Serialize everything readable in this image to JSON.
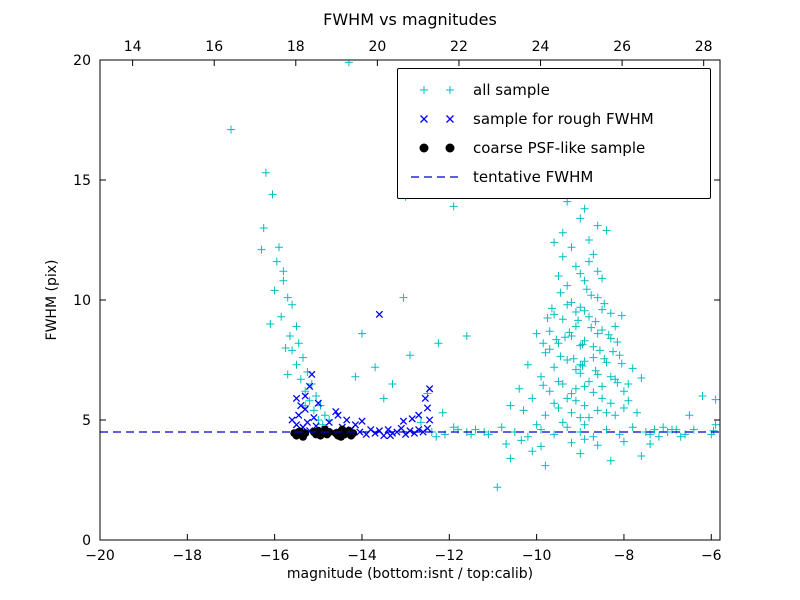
{
  "chart_data": {
    "type": "scatter",
    "title": "FWHM vs magnitudes",
    "xlabel": "magnitude (bottom:isnt / top:calib)",
    "ylabel": "FWHM (pix)",
    "xlim": [
      -20,
      -5.8
    ],
    "ylim": [
      0,
      20
    ],
    "top_xlim": [
      13.2,
      28.4
    ],
    "x_ticks": [
      -20,
      -18,
      -16,
      -14,
      -12,
      -10,
      -8,
      -6
    ],
    "x_tick_labels": [
      "−20",
      "−18",
      "−16",
      "−14",
      "−12",
      "−10",
      "−8",
      "−6"
    ],
    "y_ticks": [
      0,
      5,
      10,
      15,
      20
    ],
    "y_tick_labels": [
      "0",
      "5",
      "10",
      "15",
      "20"
    ],
    "top_ticks": [
      14,
      16,
      18,
      20,
      22,
      24,
      26,
      28
    ],
    "top_tick_labels": [
      "14",
      "16",
      "18",
      "20",
      "22",
      "24",
      "26",
      "28"
    ],
    "grid": false,
    "legend_position": "upper right",
    "tentative_fwhm_value": 4.5,
    "series": [
      {
        "name": "all sample",
        "marker": "plus",
        "color": "#00bfbf",
        "points": [
          [
            -17.0,
            17.1
          ],
          [
            -16.2,
            15.3
          ],
          [
            -16.05,
            14.4
          ],
          [
            -16.3,
            12.1
          ],
          [
            -15.95,
            11.6
          ],
          [
            -15.8,
            11.2
          ],
          [
            -16.0,
            10.4
          ],
          [
            -15.7,
            10.1
          ],
          [
            -15.6,
            9.8
          ],
          [
            -15.85,
            9.3
          ],
          [
            -15.5,
            8.9
          ],
          [
            -15.65,
            8.5
          ],
          [
            -15.45,
            8.2
          ],
          [
            -15.6,
            7.9
          ],
          [
            -15.35,
            7.6
          ],
          [
            -15.5,
            7.3
          ],
          [
            -15.25,
            7.0
          ],
          [
            -15.4,
            6.7
          ],
          [
            -15.15,
            6.5
          ],
          [
            -15.3,
            6.2
          ],
          [
            -15.05,
            6.0
          ],
          [
            -15.2,
            5.8
          ],
          [
            -14.95,
            5.6
          ],
          [
            -15.1,
            5.4
          ],
          [
            -14.85,
            5.2
          ],
          [
            -15.0,
            5.0
          ],
          [
            -15.7,
            6.9
          ],
          [
            -15.75,
            8.0
          ],
          [
            -16.1,
            9.0
          ],
          [
            -15.3,
            5.6
          ],
          [
            -14.9,
            4.8
          ],
          [
            -16.25,
            13.0
          ],
          [
            -15.9,
            12.2
          ],
          [
            -15.8,
            10.8
          ],
          [
            -14.75,
            5.0
          ],
          [
            -14.3,
            19.9
          ],
          [
            -14.0,
            8.6
          ],
          [
            -13.7,
            7.2
          ],
          [
            -13.3,
            6.5
          ],
          [
            -12.9,
            7.7
          ],
          [
            -12.5,
            6.1
          ],
          [
            -12.15,
            5.3
          ],
          [
            -13.5,
            5.9
          ],
          [
            -12.65,
            4.9
          ],
          [
            -14.15,
            6.8
          ],
          [
            -12.25,
            8.2
          ],
          [
            -13.0,
            14.3
          ],
          [
            -13.05,
            10.1
          ],
          [
            -11.9,
            13.9
          ],
          [
            -11.6,
            8.5
          ],
          [
            -11.4,
            4.6
          ],
          [
            -11.1,
            4.4
          ],
          [
            -10.8,
            4.7
          ],
          [
            -10.5,
            4.5
          ],
          [
            -10.2,
            4.3
          ],
          [
            -9.9,
            4.6
          ],
          [
            -9.6,
            4.4
          ],
          [
            -9.3,
            4.7
          ],
          [
            -9.0,
            4.5
          ],
          [
            -8.7,
            4.3
          ],
          [
            -8.4,
            4.6
          ],
          [
            -8.1,
            4.4
          ],
          [
            -7.8,
            4.7
          ],
          [
            -7.5,
            4.5
          ],
          [
            -7.2,
            4.3
          ],
          [
            -6.9,
            4.6
          ],
          [
            -6.6,
            4.4
          ],
          [
            -10.0,
            4.8
          ],
          [
            -9.4,
            4.9
          ],
          [
            -8.9,
            4.8
          ],
          [
            -9.8,
            5.2
          ],
          [
            -9.5,
            5.5
          ],
          [
            -9.2,
            5.3
          ],
          [
            -8.9,
            5.6
          ],
          [
            -8.6,
            5.4
          ],
          [
            -8.3,
            5.7
          ],
          [
            -8.0,
            5.5
          ],
          [
            -7.7,
            5.3
          ],
          [
            -9.1,
            5.8
          ],
          [
            -8.5,
            5.9
          ],
          [
            -10.3,
            5.4
          ],
          [
            -10.6,
            5.6
          ],
          [
            -9.0,
            5.1
          ],
          [
            -8.2,
            5.2
          ],
          [
            -7.9,
            5.8
          ],
          [
            -9.6,
            5.7
          ],
          [
            -9.3,
            5.9
          ],
          [
            -8.8,
            5.1
          ],
          [
            -8.4,
            5.3
          ],
          [
            -10.1,
            5.9
          ],
          [
            -9.7,
            6.2
          ],
          [
            -9.4,
            6.5
          ],
          [
            -9.1,
            6.3
          ],
          [
            -8.8,
            6.6
          ],
          [
            -8.5,
            6.4
          ],
          [
            -8.2,
            6.7
          ],
          [
            -7.9,
            6.5
          ],
          [
            -9.9,
            6.8
          ],
          [
            -9.2,
            6.1
          ],
          [
            -8.6,
            6.9
          ],
          [
            -10.4,
            6.3
          ],
          [
            -8.0,
            6.2
          ],
          [
            -8.3,
            6.8
          ],
          [
            -9.5,
            6.6
          ],
          [
            -8.9,
            6.4
          ],
          [
            -9.0,
            6.95
          ],
          [
            -8.7,
            6.15
          ],
          [
            -9.85,
            6.45
          ],
          [
            -8.15,
            6.55
          ],
          [
            -7.6,
            6.75
          ],
          [
            -9.6,
            7.2
          ],
          [
            -9.3,
            7.5
          ],
          [
            -9.0,
            7.3
          ],
          [
            -8.7,
            7.6
          ],
          [
            -8.4,
            7.4
          ],
          [
            -8.1,
            7.7
          ],
          [
            -9.8,
            7.8
          ],
          [
            -9.1,
            7.1
          ],
          [
            -8.55,
            7.9
          ],
          [
            -8.9,
            7.45
          ],
          [
            -10.2,
            7.3
          ],
          [
            -7.8,
            7.15
          ],
          [
            -9.45,
            7.65
          ],
          [
            -8.25,
            7.85
          ],
          [
            -8.95,
            7.25
          ],
          [
            -9.15,
            7.55
          ],
          [
            -8.65,
            7.05
          ],
          [
            -9.7,
            7.95
          ],
          [
            -8.05,
            7.35
          ],
          [
            -8.45,
            7.55
          ],
          [
            -9.5,
            8.2
          ],
          [
            -9.2,
            8.5
          ],
          [
            -8.9,
            8.3
          ],
          [
            -8.6,
            8.6
          ],
          [
            -8.3,
            8.4
          ],
          [
            -9.7,
            8.7
          ],
          [
            -9.0,
            8.1
          ],
          [
            -8.75,
            8.85
          ],
          [
            -9.35,
            8.45
          ],
          [
            -8.15,
            8.25
          ],
          [
            -10.0,
            8.6
          ],
          [
            -8.5,
            8.75
          ],
          [
            -9.1,
            8.9
          ],
          [
            -8.95,
            8.15
          ],
          [
            -9.55,
            8.35
          ],
          [
            -8.35,
            8.55
          ],
          [
            -9.25,
            8.65
          ],
          [
            -8.7,
            8.05
          ],
          [
            -9.85,
            8.2
          ],
          [
            -8.2,
            8.9
          ],
          [
            -9.4,
            9.2
          ],
          [
            -9.1,
            9.5
          ],
          [
            -8.8,
            9.3
          ],
          [
            -8.5,
            9.6
          ],
          [
            -9.6,
            9.4
          ],
          [
            -9.0,
            9.7
          ],
          [
            -8.65,
            9.1
          ],
          [
            -9.3,
            9.8
          ],
          [
            -8.9,
            9.55
          ],
          [
            -9.75,
            9.25
          ],
          [
            -8.3,
            9.45
          ],
          [
            -9.2,
            9.9
          ],
          [
            -8.6,
            10.1
          ],
          [
            -9.45,
            10.3
          ],
          [
            -8.85,
            10.45
          ],
          [
            -9.05,
            9.15
          ],
          [
            -8.45,
            9.85
          ],
          [
            -9.65,
            9.65
          ],
          [
            -8.05,
            9.35
          ],
          [
            -8.75,
            10.2
          ],
          [
            -9.3,
            10.6
          ],
          [
            -8.9,
            10.8
          ],
          [
            -9.5,
            11.0
          ],
          [
            -8.6,
            11.2
          ],
          [
            -9.1,
            11.4
          ],
          [
            -8.8,
            11.6
          ],
          [
            -9.4,
            11.8
          ],
          [
            -8.5,
            10.9
          ],
          [
            -9.0,
            11.1
          ],
          [
            -8.7,
            11.9
          ],
          [
            -9.2,
            12.2
          ],
          [
            -8.8,
            12.5
          ],
          [
            -9.4,
            12.8
          ],
          [
            -8.6,
            13.1
          ],
          [
            -9.0,
            13.4
          ],
          [
            -8.9,
            13.8
          ],
          [
            -9.3,
            14.1
          ],
          [
            -8.7,
            14.5
          ],
          [
            -9.6,
            12.4
          ],
          [
            -8.4,
            12.9
          ],
          [
            -12.4,
            4.5
          ],
          [
            -12.1,
            4.4
          ],
          [
            -11.8,
            4.6
          ],
          [
            -11.5,
            4.4
          ],
          [
            -11.2,
            4.5
          ],
          [
            -12.3,
            4.3
          ],
          [
            -11.9,
            4.7
          ],
          [
            -11.6,
            4.5
          ],
          [
            -7.0,
            4.5
          ],
          [
            -6.8,
            4.6
          ],
          [
            -6.7,
            4.3
          ],
          [
            -7.3,
            4.6
          ],
          [
            -7.4,
            4.4
          ],
          [
            -7.1,
            4.7
          ],
          [
            -10.7,
            4.0
          ],
          [
            -9.9,
            3.9
          ],
          [
            -9.2,
            4.05
          ],
          [
            -8.6,
            3.95
          ],
          [
            -8.0,
            4.1
          ],
          [
            -7.4,
            4.0
          ],
          [
            -10.35,
            4.15
          ],
          [
            -8.9,
            4.2
          ],
          [
            -10.6,
            3.4
          ],
          [
            -9.8,
            3.1
          ],
          [
            -9.0,
            3.6
          ],
          [
            -8.3,
            3.3
          ],
          [
            -10.1,
            3.7
          ],
          [
            -7.6,
            3.5
          ],
          [
            -10.9,
            2.2
          ],
          [
            -6.2,
            6.0
          ],
          [
            -5.9,
            4.8
          ],
          [
            -6.0,
            4.4
          ],
          [
            -6.4,
            4.6
          ],
          [
            -6.5,
            5.2
          ],
          [
            -5.95,
            4.55
          ],
          [
            -5.9,
            5.85
          ],
          [
            -10.8,
            14.9
          ],
          [
            -10.3,
            14.6
          ]
        ]
      },
      {
        "name": "sample for rough FWHM",
        "marker": "x",
        "color": "#0000ff",
        "points": [
          [
            -15.6,
            5.0
          ],
          [
            -15.5,
            4.8
          ],
          [
            -15.45,
            5.2
          ],
          [
            -15.35,
            4.7
          ],
          [
            -15.3,
            5.45
          ],
          [
            -15.25,
            4.9
          ],
          [
            -15.4,
            5.6
          ],
          [
            -15.3,
            6.0
          ],
          [
            -15.2,
            6.4
          ],
          [
            -15.15,
            6.9
          ],
          [
            -15.1,
            5.1
          ],
          [
            -15.05,
            4.75
          ],
          [
            -15.5,
            5.9
          ],
          [
            -15.0,
            5.7
          ],
          [
            -15.2,
            4.55
          ],
          [
            -14.85,
            4.6
          ],
          [
            -14.75,
            4.9
          ],
          [
            -14.65,
            4.5
          ],
          [
            -14.55,
            5.2
          ],
          [
            -14.45,
            4.7
          ],
          [
            -14.35,
            5.0
          ],
          [
            -14.25,
            4.6
          ],
          [
            -14.15,
            4.8
          ],
          [
            -14.05,
            4.5
          ],
          [
            -14.6,
            5.35
          ],
          [
            -14.4,
            4.45
          ],
          [
            -14.0,
            4.95
          ],
          [
            -13.9,
            4.4
          ],
          [
            -13.8,
            4.6
          ],
          [
            -13.7,
            4.45
          ],
          [
            -13.6,
            4.55
          ],
          [
            -13.5,
            4.35
          ],
          [
            -13.4,
            4.6
          ],
          [
            -13.3,
            4.45
          ],
          [
            -13.2,
            4.5
          ],
          [
            -13.1,
            4.65
          ],
          [
            -13.0,
            4.4
          ],
          [
            -12.9,
            4.55
          ],
          [
            -12.8,
            4.45
          ],
          [
            -12.7,
            4.6
          ],
          [
            -12.6,
            4.5
          ],
          [
            -12.5,
            4.65
          ],
          [
            -12.45,
            5.0
          ],
          [
            -12.5,
            5.5
          ],
          [
            -12.55,
            5.9
          ],
          [
            -12.45,
            6.3
          ],
          [
            -13.6,
            9.4
          ],
          [
            -12.7,
            5.2
          ],
          [
            -13.05,
            4.95
          ],
          [
            -12.85,
            5.05
          ],
          [
            -13.35,
            4.35
          ]
        ]
      },
      {
        "name": "coarse PSF-like sample",
        "marker": "circle",
        "color": "#000000",
        "points": [
          [
            -15.55,
            4.45
          ],
          [
            -15.5,
            4.35
          ],
          [
            -15.45,
            4.5
          ],
          [
            -15.4,
            4.4
          ],
          [
            -15.35,
            4.3
          ],
          [
            -15.3,
            4.45
          ],
          [
            -15.1,
            4.5
          ],
          [
            -15.05,
            4.4
          ],
          [
            -15.0,
            4.55
          ],
          [
            -14.95,
            4.35
          ],
          [
            -14.9,
            4.45
          ],
          [
            -14.85,
            4.6
          ],
          [
            -14.8,
            4.4
          ],
          [
            -14.75,
            4.5
          ],
          [
            -14.6,
            4.45
          ],
          [
            -14.55,
            4.35
          ],
          [
            -14.5,
            4.5
          ],
          [
            -14.45,
            4.6
          ],
          [
            -14.4,
            4.4
          ],
          [
            -14.35,
            4.45
          ],
          [
            -14.3,
            4.55
          ],
          [
            -14.25,
            4.35
          ],
          [
            -14.2,
            4.45
          ],
          [
            -15.42,
            4.52
          ],
          [
            -14.98,
            4.48
          ],
          [
            -14.48,
            4.3
          ]
        ]
      },
      {
        "name": "tentative FWHM",
        "marker": "dashed-line",
        "color": "#0000cc",
        "y": 4.5
      }
    ]
  }
}
